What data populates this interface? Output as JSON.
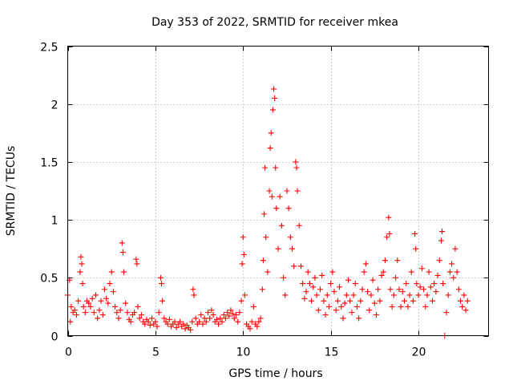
{
  "chart_data": {
    "type": "scatter",
    "title": "Day 353 of 2022, SRMTID for receiver mkea",
    "xlabel": "GPS time / hours",
    "ylabel": "SRMTID / TECUs",
    "xlim": [
      0,
      24
    ],
    "ylim": [
      0,
      2.5
    ],
    "xticks": [
      0,
      5,
      10,
      15,
      20
    ],
    "xtick_labels": [
      "0",
      "5",
      "10",
      "15",
      "20"
    ],
    "yticks": [
      0,
      0.5,
      1,
      1.5,
      2,
      2.5
    ],
    "ytick_labels": [
      "0",
      "0.5",
      "1",
      "1.5",
      "2",
      "2.5"
    ],
    "grid": true,
    "marker": "+",
    "color": "#ff0000",
    "series": [
      {
        "name": "SRMTID",
        "points": [
          [
            0.0,
            0.35
          ],
          [
            0.1,
            0.48
          ],
          [
            0.15,
            0.12
          ],
          [
            0.2,
            0.25
          ],
          [
            0.3,
            0.2
          ],
          [
            0.4,
            0.22
          ],
          [
            0.5,
            0.18
          ],
          [
            0.6,
            0.3
          ],
          [
            0.7,
            0.55
          ],
          [
            0.75,
            0.68
          ],
          [
            0.8,
            0.62
          ],
          [
            0.85,
            0.45
          ],
          [
            0.9,
            0.25
          ],
          [
            1.0,
            0.2
          ],
          [
            1.1,
            0.3
          ],
          [
            1.2,
            0.28
          ],
          [
            1.3,
            0.25
          ],
          [
            1.4,
            0.32
          ],
          [
            1.5,
            0.2
          ],
          [
            1.6,
            0.35
          ],
          [
            1.7,
            0.15
          ],
          [
            1.8,
            0.22
          ],
          [
            1.9,
            0.3
          ],
          [
            2.0,
            0.18
          ],
          [
            2.1,
            0.4
          ],
          [
            2.2,
            0.32
          ],
          [
            2.3,
            0.28
          ],
          [
            2.4,
            0.45
          ],
          [
            2.5,
            0.55
          ],
          [
            2.6,
            0.38
          ],
          [
            2.7,
            0.25
          ],
          [
            2.8,
            0.2
          ],
          [
            2.9,
            0.15
          ],
          [
            3.0,
            0.22
          ],
          [
            3.1,
            0.8
          ],
          [
            3.15,
            0.72
          ],
          [
            3.2,
            0.55
          ],
          [
            3.3,
            0.28
          ],
          [
            3.4,
            0.2
          ],
          [
            3.5,
            0.14
          ],
          [
            3.6,
            0.12
          ],
          [
            3.7,
            0.18
          ],
          [
            3.8,
            0.2
          ],
          [
            3.9,
            0.66
          ],
          [
            3.95,
            0.62
          ],
          [
            4.0,
            0.25
          ],
          [
            4.1,
            0.15
          ],
          [
            4.2,
            0.18
          ],
          [
            4.3,
            0.12
          ],
          [
            4.4,
            0.1
          ],
          [
            4.5,
            0.14
          ],
          [
            4.6,
            0.12
          ],
          [
            4.7,
            0.09
          ],
          [
            4.8,
            0.15
          ],
          [
            4.9,
            0.1
          ],
          [
            5.0,
            0.12
          ],
          [
            5.1,
            0.08
          ],
          [
            5.2,
            0.2
          ],
          [
            5.3,
            0.5
          ],
          [
            5.35,
            0.45
          ],
          [
            5.4,
            0.3
          ],
          [
            5.5,
            0.15
          ],
          [
            5.6,
            0.12
          ],
          [
            5.7,
            0.1
          ],
          [
            5.8,
            0.14
          ],
          [
            5.9,
            0.08
          ],
          [
            6.0,
            0.1
          ],
          [
            6.1,
            0.12
          ],
          [
            6.2,
            0.07
          ],
          [
            6.3,
            0.1
          ],
          [
            6.4,
            0.12
          ],
          [
            6.5,
            0.08
          ],
          [
            6.6,
            0.1
          ],
          [
            6.7,
            0.06
          ],
          [
            6.8,
            0.09
          ],
          [
            6.9,
            0.07
          ],
          [
            7.0,
            0.05
          ],
          [
            7.1,
            0.12
          ],
          [
            7.15,
            0.4
          ],
          [
            7.2,
            0.35
          ],
          [
            7.3,
            0.15
          ],
          [
            7.4,
            0.1
          ],
          [
            7.5,
            0.12
          ],
          [
            7.6,
            0.18
          ],
          [
            7.7,
            0.1
          ],
          [
            7.8,
            0.15
          ],
          [
            7.9,
            0.12
          ],
          [
            8.0,
            0.2
          ],
          [
            8.1,
            0.15
          ],
          [
            8.2,
            0.22
          ],
          [
            8.3,
            0.18
          ],
          [
            8.4,
            0.12
          ],
          [
            8.5,
            0.14
          ],
          [
            8.6,
            0.1
          ],
          [
            8.7,
            0.15
          ],
          [
            8.8,
            0.12
          ],
          [
            8.9,
            0.18
          ],
          [
            9.0,
            0.15
          ],
          [
            9.1,
            0.2
          ],
          [
            9.2,
            0.17
          ],
          [
            9.3,
            0.22
          ],
          [
            9.4,
            0.19
          ],
          [
            9.5,
            0.15
          ],
          [
            9.6,
            0.18
          ],
          [
            9.7,
            0.12
          ],
          [
            9.8,
            0.2
          ],
          [
            9.9,
            0.3
          ],
          [
            9.95,
            0.62
          ],
          [
            10.0,
            0.85
          ],
          [
            10.05,
            0.7
          ],
          [
            10.1,
            0.35
          ],
          [
            10.2,
            0.1
          ],
          [
            10.3,
            0.08
          ],
          [
            10.4,
            0.06
          ],
          [
            10.5,
            0.12
          ],
          [
            10.6,
            0.25
          ],
          [
            10.7,
            0.1
          ],
          [
            10.8,
            0.08
          ],
          [
            10.9,
            0.12
          ],
          [
            11.0,
            0.15
          ],
          [
            11.1,
            0.4
          ],
          [
            11.15,
            0.65
          ],
          [
            11.2,
            1.05
          ],
          [
            11.25,
            1.45
          ],
          [
            11.3,
            0.85
          ],
          [
            11.4,
            0.55
          ],
          [
            11.5,
            1.25
          ],
          [
            11.55,
            1.62
          ],
          [
            11.6,
            1.75
          ],
          [
            11.65,
            1.2
          ],
          [
            11.7,
            1.95
          ],
          [
            11.75,
            2.13
          ],
          [
            11.8,
            2.05
          ],
          [
            11.85,
            1.45
          ],
          [
            11.9,
            1.1
          ],
          [
            12.0,
            0.75
          ],
          [
            12.1,
            1.2
          ],
          [
            12.2,
            0.95
          ],
          [
            12.3,
            0.5
          ],
          [
            12.4,
            0.35
          ],
          [
            12.5,
            1.25
          ],
          [
            12.6,
            1.1
          ],
          [
            12.7,
            0.85
          ],
          [
            12.8,
            0.75
          ],
          [
            12.9,
            0.6
          ],
          [
            13.0,
            1.5
          ],
          [
            13.05,
            1.45
          ],
          [
            13.1,
            1.25
          ],
          [
            13.2,
            0.95
          ],
          [
            13.3,
            0.6
          ],
          [
            13.4,
            0.45
          ],
          [
            13.5,
            0.32
          ],
          [
            13.6,
            0.38
          ],
          [
            13.7,
            0.55
          ],
          [
            13.8,
            0.45
          ],
          [
            13.9,
            0.3
          ],
          [
            14.0,
            0.42
          ],
          [
            14.1,
            0.5
          ],
          [
            14.2,
            0.35
          ],
          [
            14.3,
            0.22
          ],
          [
            14.4,
            0.4
          ],
          [
            14.5,
            0.52
          ],
          [
            14.6,
            0.3
          ],
          [
            14.7,
            0.18
          ],
          [
            14.8,
            0.35
          ],
          [
            14.9,
            0.25
          ],
          [
            15.0,
            0.45
          ],
          [
            15.1,
            0.55
          ],
          [
            15.2,
            0.38
          ],
          [
            15.3,
            0.22
          ],
          [
            15.4,
            0.3
          ],
          [
            15.5,
            0.42
          ],
          [
            15.6,
            0.25
          ],
          [
            15.7,
            0.15
          ],
          [
            15.8,
            0.28
          ],
          [
            15.9,
            0.35
          ],
          [
            16.0,
            0.48
          ],
          [
            16.1,
            0.3
          ],
          [
            16.2,
            0.2
          ],
          [
            16.3,
            0.35
          ],
          [
            16.4,
            0.45
          ],
          [
            16.5,
            0.25
          ],
          [
            16.6,
            0.15
          ],
          [
            16.7,
            0.3
          ],
          [
            16.8,
            0.4
          ],
          [
            16.9,
            0.55
          ],
          [
            17.0,
            0.62
          ],
          [
            17.1,
            0.38
          ],
          [
            17.2,
            0.22
          ],
          [
            17.3,
            0.35
          ],
          [
            17.4,
            0.48
          ],
          [
            17.5,
            0.28
          ],
          [
            17.6,
            0.18
          ],
          [
            17.7,
            0.4
          ],
          [
            17.8,
            0.3
          ],
          [
            17.9,
            0.52
          ],
          [
            18.0,
            0.55
          ],
          [
            18.1,
            0.65
          ],
          [
            18.2,
            0.85
          ],
          [
            18.3,
            1.02
          ],
          [
            18.35,
            0.88
          ],
          [
            18.4,
            0.4
          ],
          [
            18.5,
            0.25
          ],
          [
            18.6,
            0.35
          ],
          [
            18.7,
            0.5
          ],
          [
            18.8,
            0.65
          ],
          [
            18.9,
            0.4
          ],
          [
            19.0,
            0.25
          ],
          [
            19.1,
            0.38
          ],
          [
            19.2,
            0.3
          ],
          [
            19.3,
            0.45
          ],
          [
            19.4,
            0.25
          ],
          [
            19.5,
            0.35
          ],
          [
            19.6,
            0.55
          ],
          [
            19.7,
            0.3
          ],
          [
            19.8,
            0.88
          ],
          [
            19.85,
            0.75
          ],
          [
            19.9,
            0.45
          ],
          [
            20.0,
            0.35
          ],
          [
            20.1,
            0.42
          ],
          [
            20.2,
            0.58
          ],
          [
            20.3,
            0.4
          ],
          [
            20.4,
            0.25
          ],
          [
            20.5,
            0.35
          ],
          [
            20.6,
            0.55
          ],
          [
            20.7,
            0.42
          ],
          [
            20.8,
            0.3
          ],
          [
            20.9,
            0.45
          ],
          [
            21.0,
            0.38
          ],
          [
            21.1,
            0.52
          ],
          [
            21.2,
            0.65
          ],
          [
            21.3,
            0.82
          ],
          [
            21.35,
            0.9
          ],
          [
            21.4,
            0.45
          ],
          [
            21.5,
            0.0
          ],
          [
            21.6,
            0.2
          ],
          [
            21.7,
            0.35
          ],
          [
            21.8,
            0.55
          ],
          [
            21.9,
            0.62
          ],
          [
            22.0,
            0.5
          ],
          [
            22.1,
            0.75
          ],
          [
            22.2,
            0.55
          ],
          [
            22.3,
            0.4
          ],
          [
            22.4,
            0.3
          ],
          [
            22.5,
            0.25
          ],
          [
            22.6,
            0.35
          ],
          [
            22.7,
            0.22
          ],
          [
            22.8,
            0.3
          ]
        ]
      }
    ]
  }
}
